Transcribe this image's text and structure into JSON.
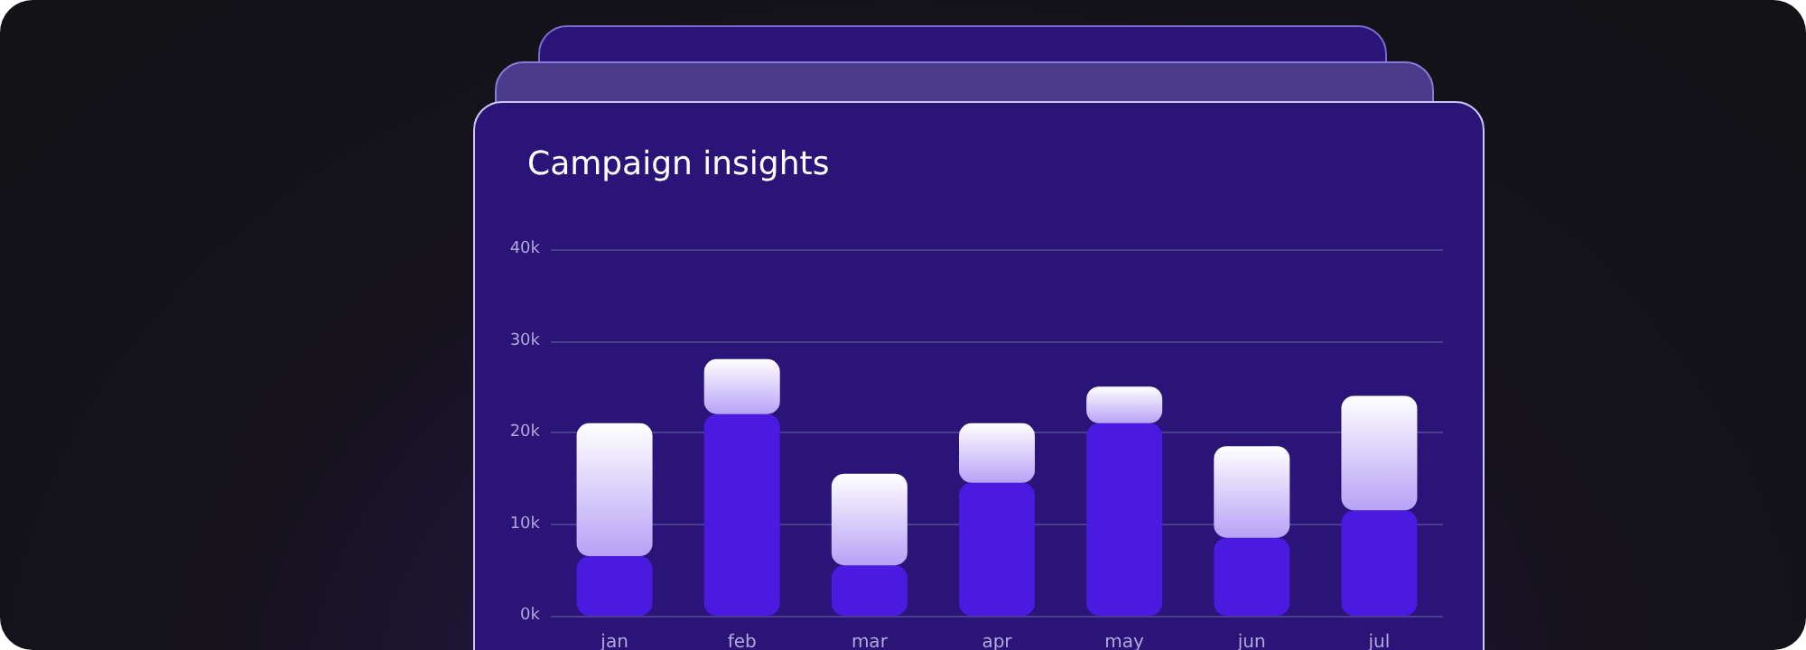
{
  "chart_data": {
    "type": "bar",
    "title": "Campaign insights",
    "stacked": true,
    "categories": [
      "jan",
      "feb",
      "mar",
      "apr",
      "may",
      "jun",
      "jul"
    ],
    "series": [
      {
        "color": "#4a1ae0",
        "values": [
          6500,
          22000,
          5500,
          14500,
          21000,
          8500,
          11500
        ]
      },
      {
        "color": "#b7a2f6",
        "values": [
          14500,
          6000,
          10000,
          6500,
          4000,
          10000,
          12500
        ]
      }
    ],
    "ylim": [
      0,
      40000
    ],
    "yticks": [
      {
        "value": 0,
        "label": "0k"
      },
      {
        "value": 10000,
        "label": "10k"
      },
      {
        "value": 20000,
        "label": "20k"
      },
      {
        "value": 30000,
        "label": "30k"
      },
      {
        "value": 40000,
        "label": "40k"
      }
    ],
    "grid": "y"
  }
}
